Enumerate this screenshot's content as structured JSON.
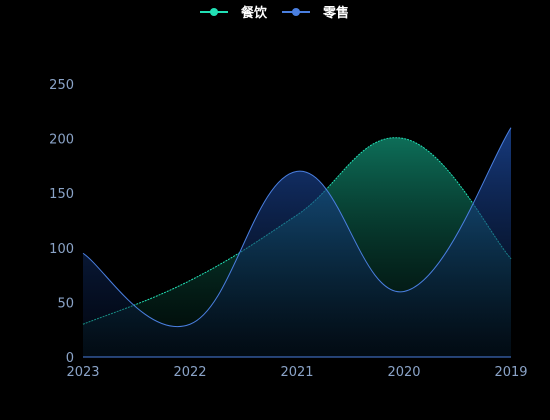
{
  "chart_data": {
    "type": "area",
    "categories": [
      "2023",
      "2022",
      "2021",
      "2020",
      "2019"
    ],
    "series": [
      {
        "name": "餐饮",
        "values": [
          30,
          70,
          130,
          200,
          90
        ],
        "color": "#22e0b5"
      },
      {
        "name": "零售",
        "values": [
          95,
          30,
          170,
          60,
          210
        ],
        "color": "#4a7fe0"
      }
    ],
    "ylim": [
      0,
      250
    ],
    "yticks": [
      0,
      50,
      100,
      150,
      200,
      250
    ],
    "grid": false,
    "legend_position": "top-center",
    "smooth": true,
    "background": "#000000"
  }
}
